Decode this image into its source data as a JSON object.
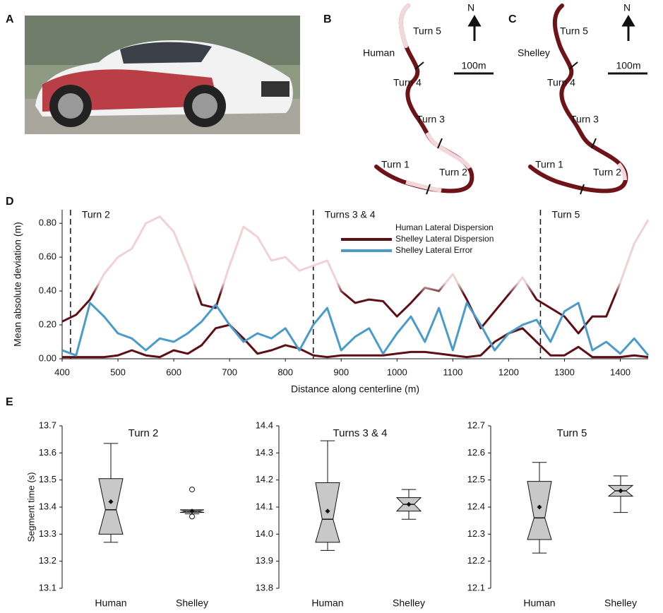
{
  "panel_labels": [
    "A",
    "B",
    "C",
    "D",
    "E"
  ],
  "maps": [
    {
      "driver": "Human",
      "turns": [
        "Turn 1",
        "Turn 2",
        "Turn 3",
        "Turn 4",
        "Turn 5"
      ],
      "north": "N",
      "scale": "100m"
    },
    {
      "driver": "Shelley",
      "turns": [
        "Turn 1",
        "Turn 2",
        "Turn 3",
        "Turn 4",
        "Turn 5"
      ],
      "north": "N",
      "scale": "100m"
    }
  ],
  "chart_data": [
    {
      "type": "line",
      "xlabel": "Distance along centerline (m)",
      "ylabel": "Mean absolute deviation (m)",
      "x": [
        400,
        425,
        450,
        475,
        500,
        525,
        550,
        575,
        600,
        625,
        650,
        675,
        700,
        725,
        750,
        775,
        800,
        825,
        850,
        875,
        900,
        925,
        950,
        975,
        1000,
        1025,
        1050,
        1075,
        1100,
        1125,
        1150,
        1175,
        1200,
        1225,
        1250,
        1275,
        1300,
        1325,
        1350,
        1375,
        1400,
        1425,
        1450
      ],
      "xlim": [
        400,
        1450
      ],
      "xticks": [
        400,
        500,
        600,
        700,
        800,
        900,
        1000,
        1100,
        1200,
        1300,
        1400
      ],
      "ylim": [
        0,
        0.88
      ],
      "yticks": [
        {
          "value": 0,
          "label": "0.00"
        },
        {
          "value": 0.2,
          "label": "0.20"
        },
        {
          "value": 0.4,
          "label": "0.40"
        },
        {
          "value": 0.6,
          "label": "0.60"
        },
        {
          "value": 0.8,
          "label": "0.80"
        }
      ],
      "legend": "top",
      "series": [
        {
          "name": "Human Lateral Dispersion",
          "color": "#5e0f14",
          "light_color": "#f0d2d6",
          "values": [
            0.22,
            0.26,
            0.35,
            0.5,
            0.6,
            0.65,
            0.8,
            0.84,
            0.75,
            0.55,
            0.32,
            0.3,
            0.55,
            0.78,
            0.72,
            0.58,
            0.6,
            0.52,
            0.55,
            0.58,
            0.4,
            0.33,
            0.35,
            0.34,
            0.25,
            0.33,
            0.42,
            0.4,
            0.5,
            0.35,
            0.18,
            0.28,
            0.38,
            0.48,
            0.35,
            0.3,
            0.25,
            0.15,
            0.25,
            0.25,
            0.45,
            0.68,
            0.82
          ]
        },
        {
          "name": "Shelley Lateral Dispersion",
          "color": "#5e0f14",
          "values": [
            0.01,
            0.01,
            0.01,
            0.01,
            0.02,
            0.05,
            0.02,
            0.01,
            0.05,
            0.03,
            0.08,
            0.18,
            0.2,
            0.12,
            0.03,
            0.05,
            0.08,
            0.06,
            0.02,
            0.01,
            0.02,
            0.02,
            0.02,
            0.02,
            0.03,
            0.04,
            0.04,
            0.03,
            0.02,
            0.01,
            0.02,
            0.1,
            0.15,
            0.18,
            0.1,
            0.02,
            0.02,
            0.07,
            0.01,
            0.01,
            0.01,
            0.02,
            0.01
          ]
        },
        {
          "name": "Shelley Lateral Error",
          "color": "#4a9bc9",
          "values": [
            0.05,
            0.02,
            0.33,
            0.25,
            0.15,
            0.12,
            0.05,
            0.12,
            0.1,
            0.15,
            0.22,
            0.32,
            0.2,
            0.1,
            0.15,
            0.12,
            0.18,
            0.05,
            0.2,
            0.3,
            0.05,
            0.13,
            0.18,
            0.03,
            0.15,
            0.25,
            0.1,
            0.3,
            0.05,
            0.33,
            0.2,
            0.05,
            0.15,
            0.2,
            0.23,
            0.1,
            0.28,
            0.33,
            0.05,
            0.1,
            0.03,
            0.12,
            0.02
          ]
        }
      ],
      "annotations": [
        {
          "x": 415,
          "label": "Turn 2"
        },
        {
          "x": 850,
          "label": "Turns 3 & 4"
        },
        {
          "x": 1257,
          "label": "Turn 5"
        }
      ]
    },
    {
      "type": "box",
      "title": "Turn 2",
      "ylabel": "Segment time (s)",
      "color": "#c8c8c8",
      "categories": [
        "Human",
        "Shelley"
      ],
      "ylim": [
        13.1,
        13.7
      ],
      "yticks": [
        13.1,
        13.2,
        13.3,
        13.4,
        13.5,
        13.6,
        13.7
      ],
      "boxes": [
        {
          "min": 13.27,
          "q1": 13.3,
          "median": 13.39,
          "q3": 13.505,
          "max": 13.635,
          "mean": 13.42,
          "outliers": []
        },
        {
          "min": 13.375,
          "q1": 13.38,
          "median": 13.385,
          "q3": 13.39,
          "max": 13.39,
          "mean": 13.385,
          "outliers": [
            13.465,
            13.365
          ]
        }
      ]
    },
    {
      "type": "box",
      "title": "Turns 3 & 4",
      "color": "#c8c8c8",
      "categories": [
        "Human",
        "Shelley"
      ],
      "ylim": [
        13.8,
        14.4
      ],
      "yticks": [
        13.8,
        13.9,
        {
          "value": 14,
          "label": "14.0"
        },
        14.1,
        14.2,
        14.3,
        14.4
      ],
      "boxes": [
        {
          "min": 13.94,
          "q1": 13.97,
          "median": 14.055,
          "q3": 14.19,
          "max": 14.345,
          "mean": 14.085,
          "outliers": []
        },
        {
          "min": 14.055,
          "q1": 14.085,
          "median": 14.11,
          "q3": 14.135,
          "max": 14.165,
          "mean": 14.11,
          "outliers": []
        }
      ]
    },
    {
      "type": "box",
      "title": "Turn 5",
      "color": "#c8c8c8",
      "categories": [
        "Human",
        "Shelley"
      ],
      "ylim": [
        12.1,
        12.7
      ],
      "yticks": [
        12.1,
        12.2,
        12.3,
        12.4,
        12.5,
        12.6,
        12.7
      ],
      "boxes": [
        {
          "min": 12.23,
          "q1": 12.28,
          "median": 12.36,
          "q3": 12.495,
          "max": 12.565,
          "mean": 12.4,
          "outliers": []
        },
        {
          "min": 12.38,
          "q1": 12.44,
          "median": 12.46,
          "q3": 12.48,
          "max": 12.515,
          "mean": 12.46,
          "outliers": []
        }
      ]
    }
  ]
}
